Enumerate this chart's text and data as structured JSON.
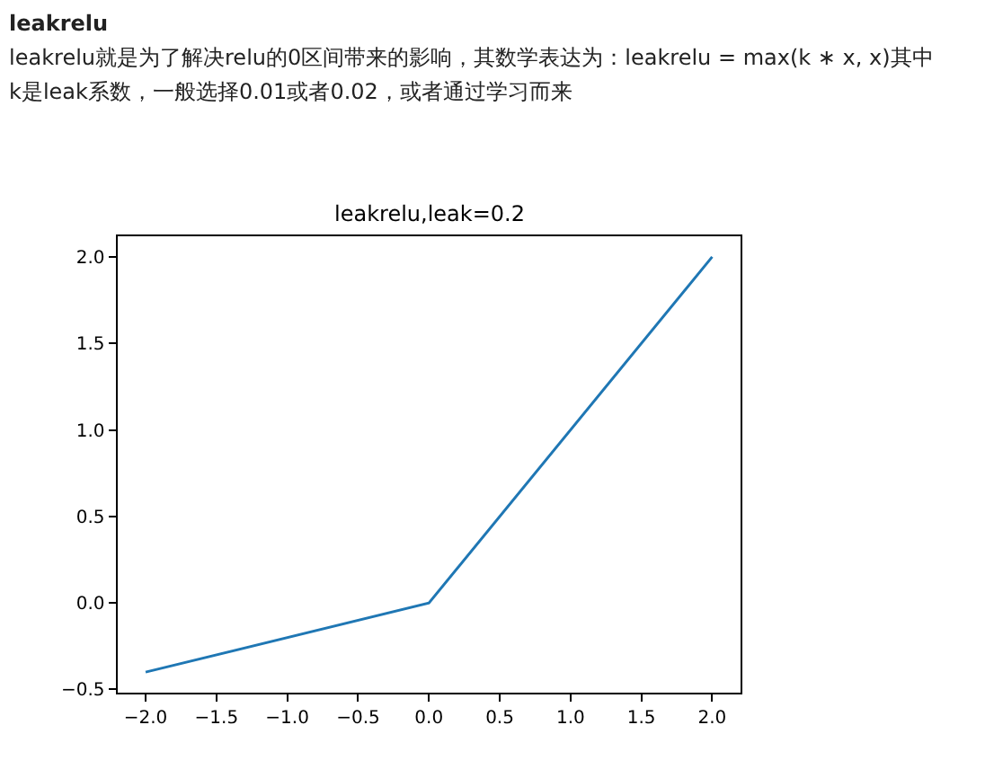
{
  "chart_data": {
    "type": "line",
    "title": "leakrelu,leak=0.2",
    "annotations": [
      "leakrelu",
      "leakrelu就是为了解决relu的0区间带来的影响，其数学表达为：leakrelu = max(k ∗ x, x)其中",
      "k是leak系数，一般选择0.01或者0.02，或者通过学习而来"
    ],
    "x": [
      -2.0,
      0.0,
      2.0
    ],
    "series": [
      {
        "color": "#1f77b4",
        "values": [
          -0.4,
          0.0,
          2.0
        ]
      }
    ],
    "xlim": [
      -2.2,
      2.2
    ],
    "ylim": [
      -0.52,
      2.12
    ],
    "xticks": [
      {
        "value": -2.0,
        "label": "−2.0"
      },
      {
        "value": -1.5,
        "label": "−1.5"
      },
      {
        "value": -1.0,
        "label": "−1.0"
      },
      {
        "value": -0.5,
        "label": "−0.5"
      },
      {
        "value": 0.0,
        "label": "0.0"
      },
      {
        "value": 0.5,
        "label": "0.5"
      },
      {
        "value": 1.0,
        "label": "1.0"
      },
      {
        "value": 1.5,
        "label": "1.5"
      },
      {
        "value": 2.0,
        "label": "2.0"
      }
    ],
    "yticks": [
      {
        "value": -0.5,
        "label": "−0.5"
      },
      {
        "value": 0.0,
        "label": "0.0"
      },
      {
        "value": 0.5,
        "label": "0.5"
      },
      {
        "value": 1.0,
        "label": "1.0"
      },
      {
        "value": 1.5,
        "label": "1.5"
      },
      {
        "value": 2.0,
        "label": "2.0"
      }
    ],
    "marker": "none",
    "line_style": "solid"
  }
}
